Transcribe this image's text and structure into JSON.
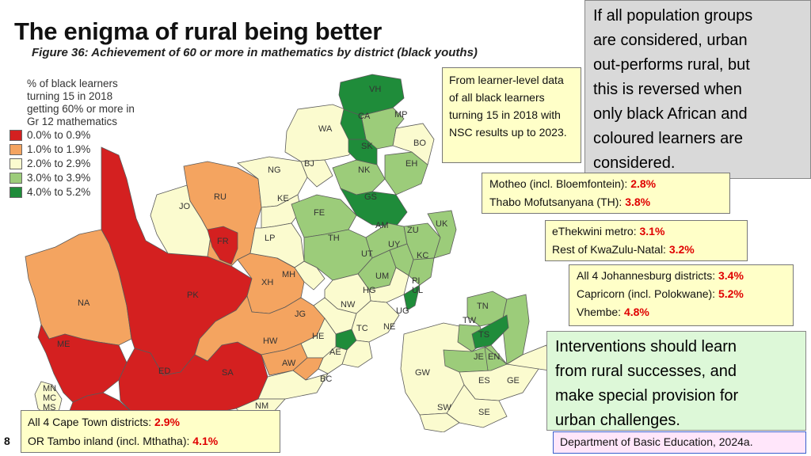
{
  "title": "The enigma of rural being better",
  "figure_title": "Figure 36: Achievement of 60 or more in mathematics by district (black youths)",
  "legend": {
    "title_line1": "% of black learners turning 15 in 2018",
    "title_line2": "getting 60% or more in Gr 12 mathematics",
    "items": [
      {
        "label": "0.0% to 0.9%",
        "color": "#d42020"
      },
      {
        "label": "1.0% to 1.9%",
        "color": "#f4a460"
      },
      {
        "label": "2.0% to 2.9%",
        "color": "#fbfbcf"
      },
      {
        "label": "3.0% to 3.9%",
        "color": "#9ccc7a"
      },
      {
        "label": "4.0% to 5.2%",
        "color": "#1f8c3a"
      }
    ]
  },
  "colors": {
    "red": "#d42020",
    "orange": "#f4a460",
    "cream": "#fbfbcf",
    "lightgreen": "#9ccc7a",
    "darkgreen": "#1f8c3a"
  },
  "notes": {
    "learner_data": "From learner-level data of all black learners turning 15 in 2018 with NSC results up to 2023.",
    "main_l1": "If all population groups",
    "main_l2": "are considered, urban",
    "main_l3": "out-performs rural, but",
    "main_l4": "this is reversed when",
    "main_l5": "only black African and",
    "main_l6": "coloured learners are",
    "main_l7": "considered.",
    "motheo_label": "Motheo (incl. Bloemfontein): ",
    "motheo_value": "2.8%",
    "thabo_label": "Thabo Mofutsanyana (TH): ",
    "thabo_value": "3.8%",
    "ethekwini_label": "eThekwini metro: ",
    "ethekwini_value": "3.1%",
    "kzn_label": "Rest of KwaZulu-Natal: ",
    "kzn_value": "3.2%",
    "jhb_label": "All 4 Johannesburg districts: ",
    "jhb_value": "3.4%",
    "capricorn_label": "Capricorn (incl. Polokwane): ",
    "capricorn_value": "5.2%",
    "vhembe_label": "Vhembe: ",
    "vhembe_value": "4.8%",
    "interv_l1": "Interventions should learn",
    "interv_l2": "from rural successes, and",
    "interv_l3": "make special provision for",
    "interv_l4": "urban challenges.",
    "capetown_label": "All 4 Cape Town districts: ",
    "capetown_value": "2.9%",
    "ortambo_label": "OR Tambo inland (incl. Mthatha): ",
    "ortambo_value": "4.1%"
  },
  "source": "Department of Basic Education, 2024a.",
  "page_number": "8",
  "district_labels": {
    "VH": "VH",
    "CA": "CA",
    "MP": "MP",
    "SK": "SK",
    "BO": "BO",
    "EH": "EH",
    "NK": "NK",
    "GS": "GS",
    "WA": "WA",
    "NG": "NG",
    "BJ": "BJ",
    "KE": "KE",
    "FE": "FE",
    "AM": "AM",
    "ZU": "ZU",
    "UK": "UK",
    "UY": "UY",
    "KC": "KC",
    "TH": "TH",
    "UT": "UT",
    "JO": "JO",
    "RU": "RU",
    "FR": "FR",
    "LP": "LP",
    "MH": "MH",
    "UM": "UM",
    "PI": "PI",
    "UL": "UL",
    "HG": "HG",
    "XH": "XH",
    "NW": "NW",
    "UG": "UG",
    "NA": "NA",
    "PK": "PK",
    "JG": "JG",
    "TC": "TC",
    "NE": "NE",
    "HE": "HE",
    "HW": "HW",
    "AE": "AE",
    "AW": "AW",
    "BC": "BC",
    "ME": "ME",
    "ED": "ED",
    "SA": "SA",
    "MN": "MN",
    "MC": "MC",
    "MS": "MS",
    "NM": "NM",
    "TN": "TN",
    "TW": "TW",
    "TS": "TS",
    "JE": "JE",
    "EN": "EN",
    "GW": "GW",
    "ES": "ES",
    "GE": "GE",
    "SW": "SW",
    "SE": "SE"
  }
}
